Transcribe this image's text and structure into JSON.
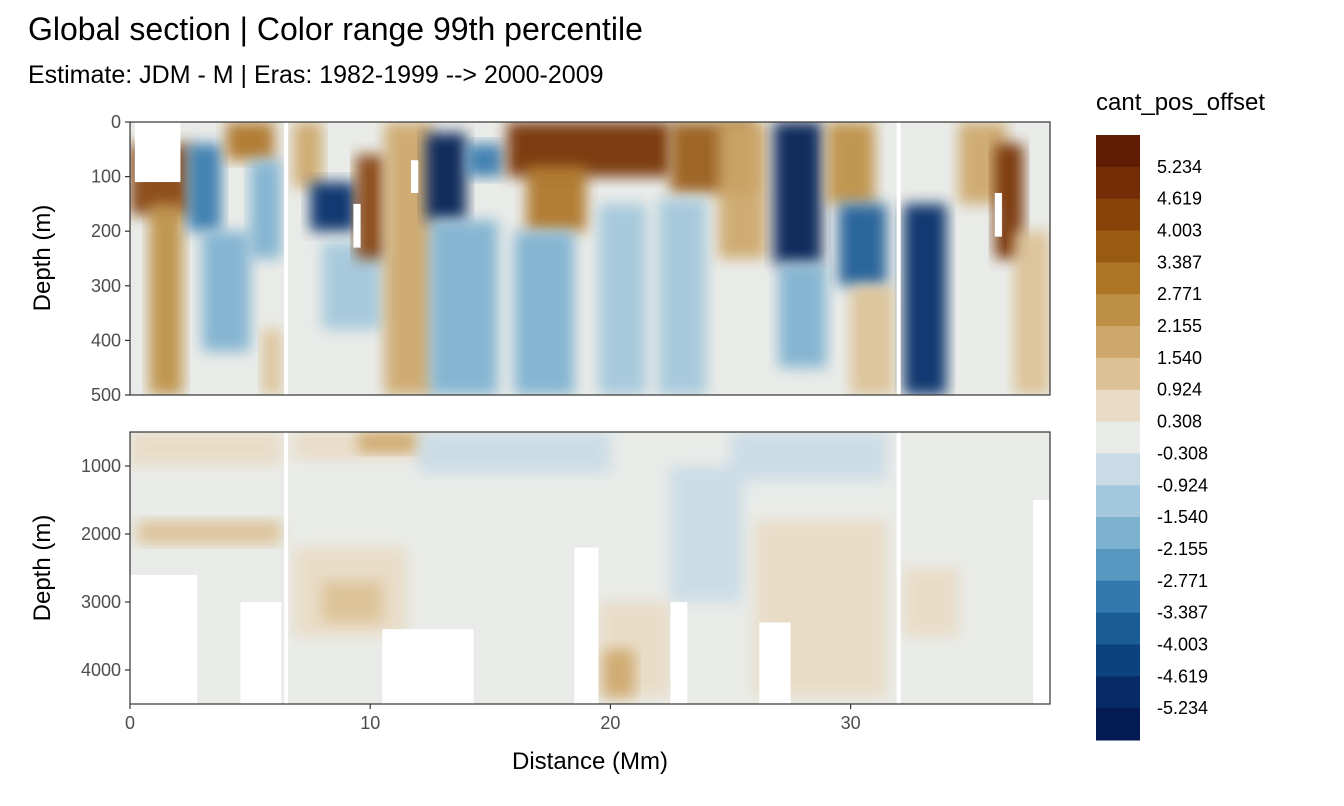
{
  "chart_data": {
    "type": "heatmap",
    "title": "Global section | Color range 99th percentile",
    "subtitle": "Estimate: JDM - M | Eras: 1982-1999 --> 2000-2009",
    "xlabel": "Distance (Mm)",
    "ylabel": "Depth (m)",
    "xlim": [
      0,
      38.3
    ],
    "x_ticks": [
      0,
      10,
      20,
      30
    ],
    "panels": [
      {
        "ylim": [
          0,
          500
        ],
        "y_ticks": [
          0,
          100,
          200,
          300,
          400,
          500
        ],
        "ylabel": "Depth (m)"
      },
      {
        "ylim": [
          500,
          4500
        ],
        "y_ticks": [
          1000,
          2000,
          3000,
          4000
        ],
        "ylabel": "Depth (m)"
      }
    ],
    "gaps_x": [
      6.5,
      32.0
    ],
    "legend": {
      "title": "cant_pos_offset",
      "position": "right",
      "labels": [
        "5.234",
        "4.619",
        "4.003",
        "3.387",
        "2.771",
        "2.155",
        "1.540",
        "0.924",
        "0.308",
        "-0.308",
        "-0.924",
        "-1.540",
        "-2.155",
        "-2.771",
        "-3.387",
        "-4.003",
        "-4.619",
        "-5.234"
      ],
      "colors": [
        "#5f1c03",
        "#742d06",
        "#864207",
        "#995b12",
        "#ad7526",
        "#bd9045",
        "#cda76b",
        "#dcc194",
        "#e9dbc5",
        "#e9ebe8",
        "#c9dbe6",
        "#a3c7dc",
        "#7db1d0",
        "#5897c0",
        "#3479ad",
        "#1a5c96",
        "#0d4280",
        "#062b67",
        "#031a52"
      ]
    },
    "features": [
      {
        "panel": 0,
        "x": [
          0.0,
          2.5
        ],
        "y": [
          40,
          170
        ],
        "value": 4.0
      },
      {
        "panel": 0,
        "x": [
          0.8,
          2.2
        ],
        "y": [
          150,
          500
        ],
        "value": 2.2
      },
      {
        "panel": 0,
        "x": [
          2.4,
          3.8
        ],
        "y": [
          40,
          200
        ],
        "value": -3.0
      },
      {
        "panel": 0,
        "x": [
          3.0,
          5.0
        ],
        "y": [
          200,
          420
        ],
        "value": -1.5
      },
      {
        "panel": 0,
        "x": [
          4.0,
          6.0
        ],
        "y": [
          0,
          70
        ],
        "value": 2.8
      },
      {
        "panel": 0,
        "x": [
          5.0,
          6.3
        ],
        "y": [
          70,
          250
        ],
        "value": -2.0
      },
      {
        "panel": 0,
        "x": [
          5.5,
          6.3
        ],
        "y": [
          380,
          500
        ],
        "value": 1.0
      },
      {
        "panel": 0,
        "x": [
          6.8,
          8.0
        ],
        "y": [
          0,
          120
        ],
        "value": 2.0
      },
      {
        "panel": 0,
        "x": [
          7.5,
          9.4
        ],
        "y": [
          110,
          200
        ],
        "value": -4.5
      },
      {
        "panel": 0,
        "x": [
          8.0,
          10.5
        ],
        "y": [
          220,
          380
        ],
        "value": -1.2
      },
      {
        "panel": 0,
        "x": [
          9.4,
          10.6
        ],
        "y": [
          60,
          250
        ],
        "value": 4.2
      },
      {
        "panel": 0,
        "x": [
          10.6,
          12.6
        ],
        "y": [
          0,
          500
        ],
        "value": 2.0
      },
      {
        "panel": 0,
        "x": [
          12.3,
          14.0
        ],
        "y": [
          20,
          180
        ],
        "value": -5.0
      },
      {
        "panel": 0,
        "x": [
          12.5,
          15.3
        ],
        "y": [
          180,
          500
        ],
        "value": -1.8
      },
      {
        "panel": 0,
        "x": [
          14.0,
          15.5
        ],
        "y": [
          40,
          100
        ],
        "value": -2.8
      },
      {
        "panel": 0,
        "x": [
          15.7,
          22.5
        ],
        "y": [
          0,
          100
        ],
        "value": 4.5
      },
      {
        "panel": 0,
        "x": [
          16.5,
          19.0
        ],
        "y": [
          80,
          200
        ],
        "value": 3.0
      },
      {
        "panel": 0,
        "x": [
          16.0,
          18.5
        ],
        "y": [
          200,
          500
        ],
        "value": -1.6
      },
      {
        "panel": 0,
        "x": [
          19.5,
          21.5
        ],
        "y": [
          150,
          500
        ],
        "value": -1.0
      },
      {
        "panel": 0,
        "x": [
          22.5,
          26.0
        ],
        "y": [
          0,
          130
        ],
        "value": 3.4
      },
      {
        "panel": 0,
        "x": [
          22.0,
          24.0
        ],
        "y": [
          140,
          500
        ],
        "value": -1.4
      },
      {
        "panel": 0,
        "x": [
          24.5,
          26.5
        ],
        "y": [
          0,
          250
        ],
        "value": 1.6
      },
      {
        "panel": 0,
        "x": [
          26.8,
          28.8
        ],
        "y": [
          0,
          260
        ],
        "value": -5.0
      },
      {
        "panel": 0,
        "x": [
          27.0,
          29.0
        ],
        "y": [
          260,
          450
        ],
        "value": -1.5
      },
      {
        "panel": 0,
        "x": [
          29.0,
          31.0
        ],
        "y": [
          0,
          150
        ],
        "value": 2.2
      },
      {
        "panel": 0,
        "x": [
          29.5,
          31.5
        ],
        "y": [
          150,
          300
        ],
        "value": -3.4
      },
      {
        "panel": 0,
        "x": [
          30.0,
          31.8
        ],
        "y": [
          300,
          500
        ],
        "value": 1.2
      },
      {
        "panel": 0,
        "x": [
          32.2,
          34.0
        ],
        "y": [
          150,
          500
        ],
        "value": -4.8
      },
      {
        "panel": 0,
        "x": [
          34.5,
          36.5
        ],
        "y": [
          0,
          150
        ],
        "value": 1.8
      },
      {
        "panel": 0,
        "x": [
          36.0,
          37.2
        ],
        "y": [
          40,
          250
        ],
        "value": 4.5
      },
      {
        "panel": 0,
        "x": [
          36.8,
          38.3
        ],
        "y": [
          200,
          500
        ],
        "value": 1.0
      },
      {
        "panel": 1,
        "x": [
          0.0,
          6.3
        ],
        "y": [
          500,
          1000
        ],
        "value": 0.6
      },
      {
        "panel": 1,
        "x": [
          0.3,
          6.3
        ],
        "y": [
          1800,
          2150
        ],
        "value": 1.3
      },
      {
        "panel": 1,
        "x": [
          6.8,
          12.5
        ],
        "y": [
          500,
          900
        ],
        "value": 0.6
      },
      {
        "panel": 1,
        "x": [
          9.5,
          12.0
        ],
        "y": [
          500,
          800
        ],
        "value": 1.5
      },
      {
        "panel": 1,
        "x": [
          12.0,
          20.0
        ],
        "y": [
          500,
          1100
        ],
        "value": -0.6
      },
      {
        "panel": 1,
        "x": [
          6.8,
          11.5
        ],
        "y": [
          2200,
          3500
        ],
        "value": 0.6
      },
      {
        "panel": 1,
        "x": [
          8.0,
          10.5
        ],
        "y": [
          2700,
          3300
        ],
        "value": 1.1
      },
      {
        "panel": 1,
        "x": [
          19.5,
          22.5
        ],
        "y": [
          3000,
          4400
        ],
        "value": 0.8
      },
      {
        "panel": 1,
        "x": [
          19.7,
          21.0
        ],
        "y": [
          3700,
          4400
        ],
        "value": 1.6
      },
      {
        "panel": 1,
        "x": [
          22.5,
          25.5
        ],
        "y": [
          1000,
          3000
        ],
        "value": -0.7
      },
      {
        "panel": 1,
        "x": [
          25.0,
          31.5
        ],
        "y": [
          500,
          1200
        ],
        "value": -0.6
      },
      {
        "panel": 1,
        "x": [
          26.0,
          31.5
        ],
        "y": [
          1800,
          4400
        ],
        "value": 0.6
      },
      {
        "panel": 1,
        "x": [
          32.2,
          34.5
        ],
        "y": [
          2500,
          3500
        ],
        "value": 0.5
      }
    ],
    "white_regions": [
      {
        "panel": 1,
        "x": [
          0.0,
          2.8
        ],
        "y": [
          2600,
          4500
        ]
      },
      {
        "panel": 1,
        "x": [
          4.6,
          6.3
        ],
        "y": [
          3000,
          4500
        ]
      },
      {
        "panel": 1,
        "x": [
          10.5,
          14.3
        ],
        "y": [
          3400,
          4500
        ]
      },
      {
        "panel": 1,
        "x": [
          18.5,
          19.5
        ],
        "y": [
          2200,
          4500
        ]
      },
      {
        "panel": 1,
        "x": [
          22.5,
          23.2
        ],
        "y": [
          3000,
          4500
        ]
      },
      {
        "panel": 1,
        "x": [
          26.2,
          27.5
        ],
        "y": [
          3300,
          4500
        ]
      },
      {
        "panel": 1,
        "x": [
          37.6,
          38.3
        ],
        "y": [
          1500,
          4500
        ]
      },
      {
        "panel": 0,
        "x": [
          0.2,
          2.1
        ],
        "y": [
          0,
          110
        ]
      },
      {
        "panel": 0,
        "x": [
          9.3,
          9.6
        ],
        "y": [
          150,
          230
        ]
      },
      {
        "panel": 0,
        "x": [
          11.7,
          12.0
        ],
        "y": [
          70,
          130
        ]
      },
      {
        "panel": 0,
        "x": [
          36.0,
          36.3
        ],
        "y": [
          130,
          210
        ]
      }
    ]
  }
}
